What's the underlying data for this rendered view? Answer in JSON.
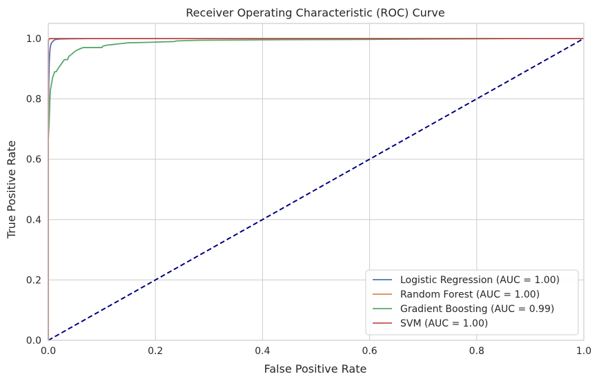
{
  "chart_data": {
    "type": "line",
    "title": "Receiver Operating Characteristic (ROC) Curve",
    "xlabel": "False Positive Rate",
    "ylabel": "True Positive Rate",
    "xlim": [
      0.0,
      1.0
    ],
    "ylim": [
      0.0,
      1.05
    ],
    "xticks": [
      "0.0",
      "0.2",
      "0.4",
      "0.6",
      "0.8",
      "1.0"
    ],
    "yticks": [
      "0.0",
      "0.2",
      "0.4",
      "0.6",
      "0.8",
      "1.0"
    ],
    "grid": true,
    "legend_position": "bottom-right",
    "series": [
      {
        "name": "Logistic Regression (AUC = 1.00)",
        "color": "#4c72b0",
        "x": [
          0.0,
          0.0,
          0.001,
          0.002,
          0.003,
          0.004,
          0.006,
          0.008,
          0.012,
          0.02,
          0.04,
          0.1,
          1.0
        ],
        "y": [
          0.0,
          0.7,
          0.86,
          0.93,
          0.96,
          0.975,
          0.985,
          0.99,
          0.996,
          0.998,
          0.999,
          1.0,
          1.0
        ]
      },
      {
        "name": "Random Forest (AUC = 1.00)",
        "color": "#dd8452",
        "x": [
          0.0,
          0.0,
          0.001,
          0.003,
          0.01,
          1.0
        ],
        "y": [
          0.0,
          0.99,
          0.997,
          0.999,
          1.0,
          1.0
        ]
      },
      {
        "name": "Gradient Boosting (AUC = 0.99)",
        "color": "#55a868",
        "x": [
          0.0,
          0.0,
          0.002,
          0.003,
          0.004,
          0.006,
          0.008,
          0.01,
          0.012,
          0.015,
          0.018,
          0.022,
          0.026,
          0.03,
          0.033,
          0.036,
          0.038,
          0.045,
          0.048,
          0.052,
          0.058,
          0.065,
          0.072,
          0.08,
          0.1,
          0.102,
          0.11,
          0.12,
          0.13,
          0.145,
          0.15,
          0.18,
          0.2,
          0.235,
          0.24,
          0.28,
          0.35,
          0.45,
          0.6,
          0.7,
          0.8,
          0.9,
          1.0
        ],
        "y": [
          0.0,
          0.66,
          0.74,
          0.8,
          0.83,
          0.85,
          0.87,
          0.88,
          0.89,
          0.89,
          0.9,
          0.91,
          0.92,
          0.93,
          0.93,
          0.93,
          0.94,
          0.95,
          0.955,
          0.96,
          0.965,
          0.97,
          0.97,
          0.97,
          0.97,
          0.975,
          0.978,
          0.98,
          0.982,
          0.985,
          0.986,
          0.987,
          0.988,
          0.99,
          0.992,
          0.994,
          0.995,
          0.996,
          0.997,
          0.998,
          0.999,
          1.0,
          1.0
        ]
      },
      {
        "name": "SVM (AUC = 1.00)",
        "color": "#c44e52",
        "x": [
          0.0,
          0.0,
          0.001,
          0.003,
          1.0
        ],
        "y": [
          0.0,
          0.995,
          0.998,
          1.0,
          1.0
        ]
      }
    ],
    "reference_line": {
      "x": [
        0.0,
        1.0
      ],
      "y": [
        0.0,
        1.0
      ],
      "color": "#000080",
      "style": "dashed"
    }
  }
}
